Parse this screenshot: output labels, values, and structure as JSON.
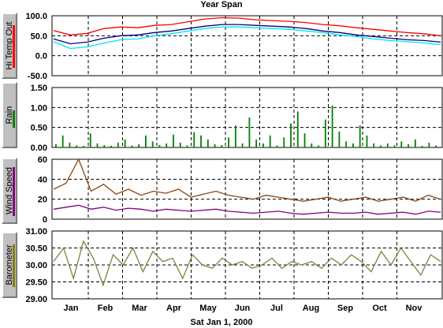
{
  "window": {
    "title": "Year Span",
    "date_label": "Sat Jan 1, 2000"
  },
  "panels": [
    {
      "id": "temp",
      "button_label": "Hi Temp Out",
      "button_accent": "#ff0000"
    },
    {
      "id": "rain",
      "button_label": "Rain",
      "button_accent": "#008000"
    },
    {
      "id": "wind",
      "button_label": "Wind Speed",
      "button_accent": "#800080"
    },
    {
      "id": "baro",
      "button_label": "Barometer",
      "button_accent": "#808000"
    }
  ],
  "chart_data": [
    {
      "id": "temp",
      "type": "line",
      "ylim": [
        -50,
        100
      ],
      "yticks": [
        "100.0",
        "50.0",
        "0.0",
        "-50.0"
      ],
      "ytick_values": [
        100,
        50,
        0,
        -50
      ],
      "grid": true,
      "series": [
        {
          "color": "#ff0000",
          "values": [
            63,
            52,
            56,
            68,
            72,
            70,
            76,
            78,
            85,
            92,
            95,
            94,
            90,
            88,
            86,
            83,
            78,
            75,
            70,
            66,
            62,
            58,
            55,
            50
          ]
        },
        {
          "color": "#00e5ee",
          "values": [
            35,
            18,
            22,
            32,
            40,
            42,
            50,
            55,
            62,
            68,
            72,
            72,
            70,
            68,
            66,
            62,
            58,
            52,
            48,
            42,
            38,
            35,
            32,
            28
          ]
        },
        {
          "color": "#000080",
          "values": [
            42,
            30,
            34,
            44,
            50,
            52,
            58,
            62,
            68,
            74,
            78,
            78,
            76,
            74,
            72,
            68,
            62,
            58,
            52,
            48,
            44,
            40,
            38,
            34
          ]
        }
      ]
    },
    {
      "id": "rain",
      "type": "bar",
      "ylim": [
        0,
        1.5
      ],
      "yticks": [
        "1.50",
        "1.00",
        "0.50",
        "0.00"
      ],
      "ytick_values": [
        1.5,
        1.0,
        0.5,
        0.0
      ],
      "grid": true,
      "series": [
        {
          "color": "#008000",
          "values": [
            0.08,
            0.3,
            0.12,
            0.05,
            0.04,
            0.35,
            0.1,
            0.06,
            0.04,
            0.12,
            0.2,
            0.05,
            0.08,
            0.3,
            0.15,
            0.06,
            0.1,
            0.32,
            0.12,
            0.05,
            0.38,
            0.3,
            0.2,
            0.08,
            0.06,
            0.25,
            0.55,
            0.1,
            0.75,
            0.2,
            0.1,
            0.3,
            0.05,
            0.25,
            0.6,
            0.9,
            0.35,
            0.1,
            0.05,
            0.7,
            1.05,
            0.4,
            0.15,
            0.1,
            0.55,
            0.3,
            0.1,
            0.05,
            0.1,
            0.05,
            0.15,
            0.08,
            0.2,
            0.04,
            0.12,
            0.05
          ]
        }
      ]
    },
    {
      "id": "wind",
      "type": "line",
      "ylim": [
        0,
        60
      ],
      "yticks": [
        "60",
        "40",
        "20",
        "0"
      ],
      "ytick_values": [
        60,
        40,
        20,
        0
      ],
      "grid": true,
      "series": [
        {
          "color": "#8b4513",
          "values": [
            30,
            36,
            60,
            28,
            35,
            25,
            30,
            24,
            28,
            26,
            30,
            22,
            25,
            28,
            24,
            22,
            20,
            24,
            22,
            20,
            18,
            20,
            22,
            18,
            20,
            22,
            18,
            20,
            22,
            18,
            24,
            20
          ]
        },
        {
          "color": "#800080",
          "values": [
            10,
            12,
            14,
            10,
            12,
            9,
            11,
            10,
            8,
            10,
            9,
            8,
            9,
            10,
            8,
            7,
            6,
            7,
            8,
            6,
            5,
            6,
            7,
            6,
            6,
            7,
            5,
            6,
            7,
            5,
            8,
            7
          ]
        }
      ]
    },
    {
      "id": "baro",
      "type": "line",
      "ylim": [
        29.0,
        31.0
      ],
      "yticks": [
        "31.00",
        "30.50",
        "30.00",
        "29.50",
        "29.00"
      ],
      "ytick_values": [
        31.0,
        30.5,
        30.0,
        29.5,
        29.0
      ],
      "grid": true,
      "series": [
        {
          "color": "#808040",
          "values": [
            30.1,
            30.5,
            29.6,
            30.7,
            30.2,
            29.4,
            30.3,
            30.0,
            30.5,
            29.8,
            30.4,
            30.1,
            30.2,
            29.6,
            30.3,
            30.0,
            29.9,
            30.2,
            30.0,
            30.1,
            29.9,
            30.0,
            30.2,
            29.9,
            30.1,
            30.0,
            30.1,
            29.9,
            30.2,
            30.0,
            30.3,
            30.1,
            29.8,
            30.4,
            30.0,
            30.5,
            30.1,
            29.7,
            30.3,
            30.1
          ]
        }
      ]
    }
  ],
  "x_axis": {
    "months": [
      "Jan",
      "Feb",
      "Mar",
      "Apr",
      "May",
      "Jun",
      "Jul",
      "Aug",
      "Sep",
      "Oct",
      "Nov"
    ]
  }
}
